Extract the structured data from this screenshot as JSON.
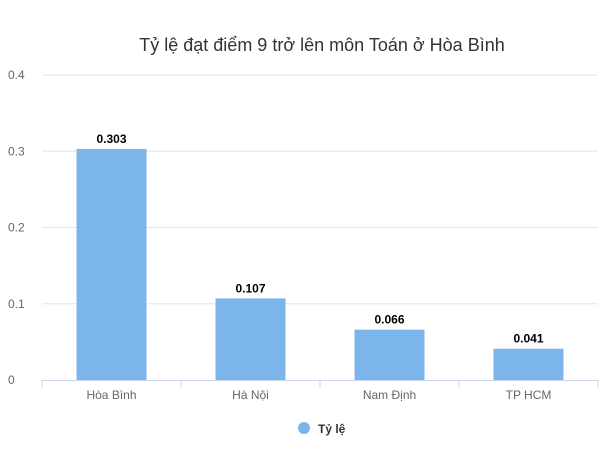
{
  "chart_data": {
    "type": "bar",
    "title": "Tỷ lệ đạt điểm 9 trở lên môn Toán ở Hòa Bình",
    "categories": [
      "Hòa Bình",
      "Hà Nội",
      "Nam Định",
      "TP HCM"
    ],
    "series": [
      {
        "name": "Tỷ lệ",
        "values": [
          0.303,
          0.107,
          0.066,
          0.041
        ],
        "color": "#7cb5ec"
      }
    ],
    "data_labels": [
      "0.303",
      "0.107",
      "0.066",
      "0.041"
    ],
    "y_ticks": [
      "0",
      "0.1",
      "0.2",
      "0.3",
      "0.4"
    ],
    "ylim": [
      0,
      0.4
    ],
    "grid": true,
    "legend_position": "bottom-center",
    "xlabel": "",
    "ylabel": ""
  }
}
